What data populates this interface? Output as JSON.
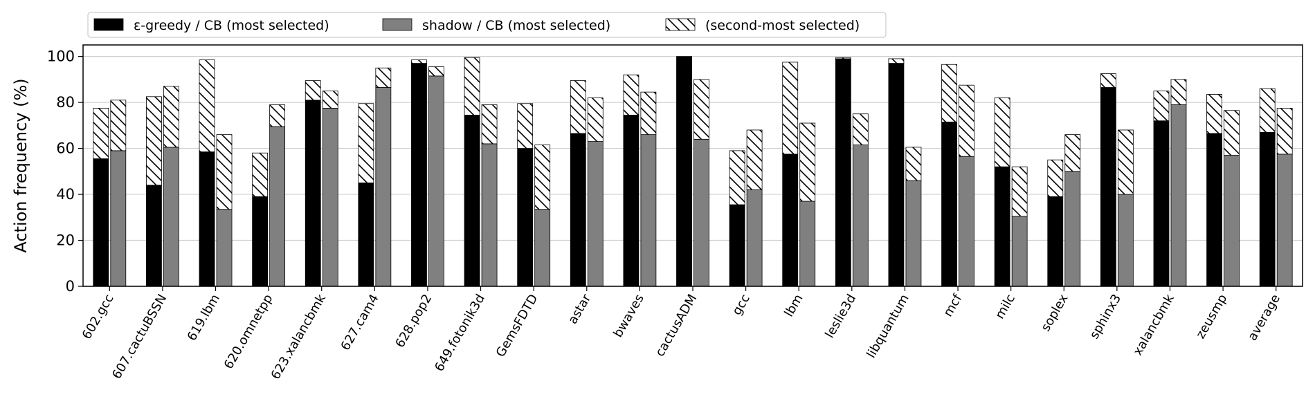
{
  "chart_data": {
    "type": "bar",
    "ylabel": "Action frequency (%)",
    "ylim": [
      0,
      105
    ],
    "yticks": [
      0,
      20,
      40,
      60,
      80,
      100
    ],
    "grid": "horizontal",
    "legend_position": "top-left",
    "categories": [
      "602.gcc",
      "607.cactuBSSN",
      "619.lbm",
      "620.omnetpp",
      "623.xalancbmk",
      "627.cam4",
      "628.pop2",
      "649.fotonik3d",
      "GemsFDTD",
      "astar",
      "bwaves",
      "cactusADM",
      "gcc",
      "lbm",
      "leslie3d",
      "libquantum",
      "mcf",
      "milc",
      "soplex",
      "sphinx3",
      "xalancbmk",
      "zeusmp",
      "average"
    ],
    "series": [
      {
        "name": "ε-greedy / CB (most selected)",
        "color": "#000000",
        "values": [
          55.5,
          44,
          58.5,
          39,
          81,
          45,
          97,
          74.5,
          60,
          66.5,
          74.5,
          100,
          35.5,
          57.5,
          99,
          97,
          71.5,
          52,
          39,
          86.5,
          72,
          66.5,
          67
        ]
      },
      {
        "name": "shadow / CB (most selected)",
        "color": "#808080",
        "values": [
          59,
          60.5,
          33.5,
          69.5,
          77.5,
          86.5,
          91.5,
          62,
          33.5,
          63,
          66,
          64,
          42,
          37,
          61.5,
          46,
          56.5,
          30.5,
          50,
          40,
          79,
          57,
          57.5
        ]
      }
    ],
    "stacked_series": {
      "name": "(second-most selected)",
      "pattern": "hatch",
      "greedy_totals": [
        77.5,
        82.5,
        98.5,
        58,
        89.5,
        79.5,
        98.5,
        99.5,
        79.5,
        89.5,
        92,
        100,
        59,
        97.5,
        99.5,
        99,
        96.5,
        82,
        55,
        92.5,
        85,
        83.5,
        86
      ],
      "shadow_totals": [
        81,
        87,
        66,
        79,
        85,
        95,
        95.5,
        79,
        61.5,
        82,
        84.5,
        90,
        68,
        71,
        75,
        60.5,
        87.5,
        52,
        66,
        68,
        90,
        76.5,
        77.5
      ]
    }
  }
}
